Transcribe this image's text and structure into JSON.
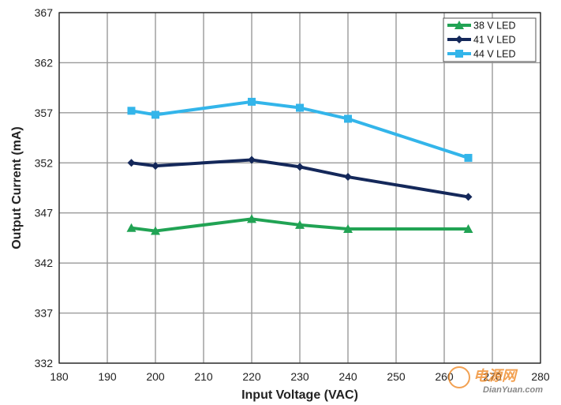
{
  "chart_data": {
    "type": "line",
    "title": "",
    "xlabel": "Input Voltage (VAC)",
    "ylabel": "Output Current (mA)",
    "xlim": [
      180,
      280
    ],
    "ylim": [
      332,
      367
    ],
    "x_ticks": [
      "180",
      "190",
      "200",
      "210",
      "220",
      "230",
      "240",
      "250",
      "260",
      "270",
      "280"
    ],
    "y_ticks": [
      "332",
      "337",
      "342",
      "347",
      "352",
      "357",
      "362",
      "367"
    ],
    "grid": true,
    "legend_position": "top-right",
    "x": [
      195,
      200,
      220,
      230,
      240,
      265
    ],
    "series": [
      {
        "name": "38 V LED",
        "marker": "triangle",
        "color": "#21a354",
        "values": [
          345.5,
          345.2,
          346.4,
          345.8,
          345.4,
          345.4
        ]
      },
      {
        "name": "41 V LED",
        "marker": "diamond",
        "color": "#14285a",
        "values": [
          352.0,
          351.7,
          352.3,
          351.6,
          350.6,
          348.6
        ]
      },
      {
        "name": "44 V LED",
        "marker": "square",
        "color": "#33b5ea",
        "values": [
          357.2,
          356.8,
          358.1,
          357.5,
          356.4,
          352.5
        ]
      }
    ]
  },
  "watermark": {
    "text_cn": "电源网",
    "text_url": "DianYuan.com"
  }
}
